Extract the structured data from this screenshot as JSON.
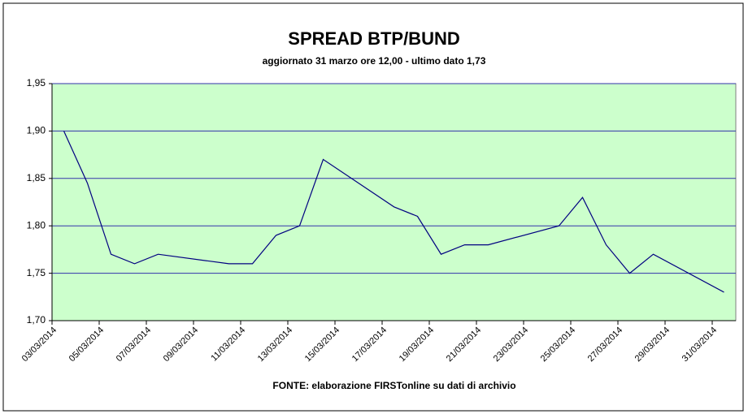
{
  "chart_data": {
    "type": "line",
    "title": "SPREAD BTP/BUND",
    "subtitle": "aggiornato 31 marzo ore 12,00 - ultimo dato 1,73",
    "source": "FONTE: elaborazione FIRSTonline su dati di archivio",
    "x": [
      "03/03/2014",
      "04/03/2014",
      "05/03/2014",
      "06/03/2014",
      "07/03/2014",
      "10/03/2014",
      "11/03/2014",
      "12/03/2014",
      "13/03/2014",
      "14/03/2014",
      "17/03/2014",
      "18/03/2014",
      "19/03/2014",
      "20/03/2014",
      "21/03/2014",
      "24/03/2014",
      "25/03/2014",
      "26/03/2014",
      "27/03/2014",
      "28/03/2014",
      "31/03/2014"
    ],
    "series": [
      {
        "color": "#000080",
        "values": [
          1.9,
          1.845,
          1.77,
          1.76,
          1.77,
          1.76,
          1.76,
          1.79,
          1.8,
          1.87,
          1.82,
          1.81,
          1.77,
          1.78,
          1.78,
          1.8,
          1.83,
          1.78,
          1.75,
          1.77,
          1.73
        ]
      }
    ],
    "xlim": [
      "03/03/2014",
      "31/03/2014"
    ],
    "xticks": [
      "03/03/2014",
      "05/03/2014",
      "07/03/2014",
      "09/03/2014",
      "11/03/2014",
      "13/03/2014",
      "15/03/2014",
      "17/03/2014",
      "19/03/2014",
      "21/03/2014",
      "23/03/2014",
      "25/03/2014",
      "27/03/2014",
      "29/03/2014",
      "31/03/2014"
    ],
    "ylim": [
      1.7,
      1.95
    ],
    "yticks": [
      {
        "value": 1.7,
        "label": "1,70"
      },
      {
        "value": 1.75,
        "label": "1,75"
      },
      {
        "value": 1.8,
        "label": "1,80"
      },
      {
        "value": 1.85,
        "label": "1,85"
      },
      {
        "value": 1.9,
        "label": "1,90"
      },
      {
        "value": 1.95,
        "label": "1,95"
      }
    ],
    "grid": true,
    "plot_background": "#ccffcc",
    "grid_color": "#3333aa"
  }
}
